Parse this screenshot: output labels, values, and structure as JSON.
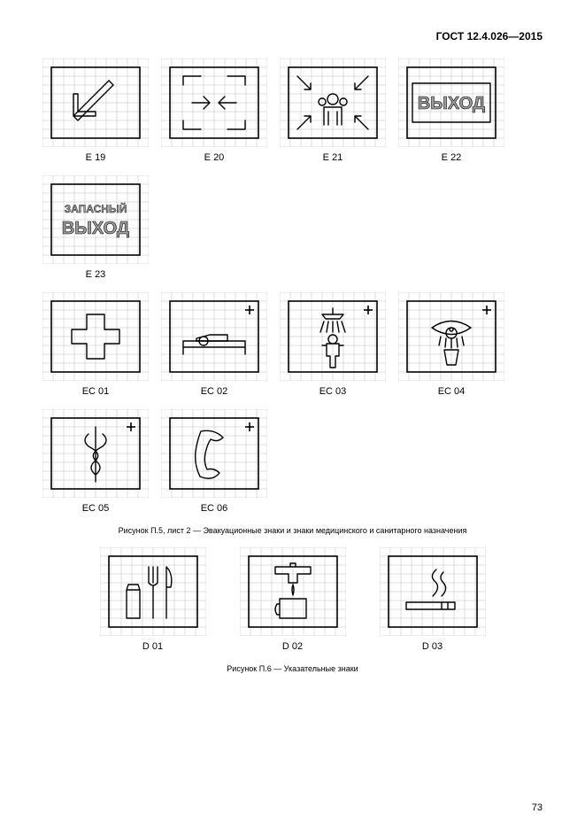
{
  "header": "ГОСТ 12.4.026—2015",
  "page_number": "73",
  "tile": {
    "width": 120,
    "height": 100,
    "grid_divisions": 10,
    "border_inset": 10,
    "colors": {
      "background": "#ffffff",
      "grid_line": "#bfbfbf",
      "border": "#000000",
      "icon_stroke": "#000000",
      "icon_fill": "none",
      "text_fill": "#9c9c9c"
    },
    "stroke_width": 1.4
  },
  "rows": [
    {
      "kind": "normal",
      "cells": [
        "e19",
        "e20",
        "e21",
        "e22"
      ]
    },
    {
      "kind": "normal",
      "cells": [
        "e23"
      ]
    },
    {
      "kind": "normal",
      "cells": [
        "ec01",
        "ec02",
        "ec03",
        "ec04"
      ]
    },
    {
      "kind": "normal",
      "cells": [
        "ec05",
        "ec06"
      ]
    },
    {
      "kind": "caption",
      "text": "Рисунок П.5, лист 2 — Эвакуационные знаки и знаки медицинского и санитарного назначения"
    },
    {
      "kind": "d",
      "cells": [
        "d01",
        "d02",
        "d03"
      ]
    },
    {
      "kind": "caption",
      "text": "Рисунок П.6 — Указательные знаки"
    }
  ],
  "signs": {
    "e19": {
      "label": "E 19",
      "desc": "arrow-diagonal-down-left",
      "type": "svg-path",
      "paths": [
        "M75 25 L35 65 M35 65 L35 40 M35 65 L60 65 M75 25 L80 30 L40 70 L35 65 M35 40 L40 40 L40 60 L60 60 L60 65"
      ]
    },
    "e20": {
      "label": "E 20",
      "desc": "emergency-exit-arrows",
      "type": "svg-path",
      "paths": [
        "M25 20 L45 20 M25 20 L25 30 M25 80 L45 80 M25 80 L25 70",
        "M95 20 L75 20 M95 20 L95 30 M95 80 L75 80 M95 80 L95 70",
        "M35 50 L55 50 M55 50 L48 43 M55 50 L48 57",
        "M85 50 L65 50 M65 50 L72 43 M65 50 L72 57"
      ]
    },
    "e21": {
      "label": "E 21",
      "desc": "assembly-point",
      "type": "svg-path",
      "paths": [
        "M60 40 a6 6 0 1 0 0.01 0 M50 75 L50 55 L70 55 L70 75 M55 75 L55 60 M65 75 L65 60",
        "M48 45 a4 4 0 1 0 0.01 0 M72 45 a4 4 0 1 0 0.01 0",
        "M20 20 L35 35 M35 35 L28 35 M35 35 L35 28",
        "M100 20 L85 35 M85 35 L92 35 M85 35 L85 28",
        "M20 80 L35 65 M35 65 L28 65 M35 65 L35 72",
        "M100 80 L85 65 M85 65 L92 65 M85 65 L85 72"
      ]
    },
    "e22": {
      "label": "E 22",
      "desc": "exit-text-vyhod",
      "type": "text-sign",
      "text": "ВЫХОД",
      "frame": true,
      "font_size": 20
    },
    "e23": {
      "label": "E 23",
      "desc": "emergency-exit-text",
      "type": "text-sign-2line",
      "line1": "ЗАПАСНЫЙ",
      "line2": "ВЫХОД",
      "font_size1": 12,
      "font_size2": 20
    },
    "ec01": {
      "label": "EC 01",
      "desc": "first-aid-cross",
      "type": "svg-path",
      "paths": [
        "M50 25 L70 25 L70 42 L87 42 L87 58 L70 58 L70 75 L50 75 L50 58 L33 58 L33 42 L50 42 Z"
      ]
    },
    "ec02": {
      "label": "EC 02",
      "desc": "stretcher",
      "type": "svg-path",
      "plus": true,
      "paths": [
        "M25 55 L95 55 M25 62 L95 62 M25 55 L25 70 M95 55 L95 70",
        "M48 50 a5 5 0 1 0 0.01 0 M40 55 L75 55 L75 48 L55 48 L40 52 Z"
      ]
    },
    "ec03": {
      "label": "EC 03",
      "desc": "safety-shower",
      "type": "svg-path",
      "plus": true,
      "paths": [
        "M60 18 L60 25 M48 25 L72 25 L68 30 L52 30 Z",
        "M50 33 L46 45 M55 33 L53 45 M60 33 L60 45 M65 33 L67 45 M70 33 L74 45",
        "M60 48 a5 5 0 1 0 0.01 0 M53 58 L67 58 L67 72 L63 72 L63 85 L57 85 L57 72 L53 72 Z M48 60 L53 60 M72 60 L67 60"
      ]
    },
    "ec04": {
      "label": "EC 04",
      "desc": "eye-wash",
      "type": "svg-path",
      "plus": true,
      "paths": [
        "M38 40 Q60 25 82 40 Q60 55 38 40 Z M60 40 a6 6 0 1 0 0.01 0 M60 40 a2 2 0 1 0 0.01 0",
        "M48 50 L46 60 M54 52 L53 62 M60 53 L60 63 M66 52 L67 62 M72 50 L74 60",
        "M52 65 L68 65 L65 82 L55 82 Z"
      ]
    },
    "ec05": {
      "label": "EC 05",
      "desc": "medical-aid-rod",
      "type": "svg-path",
      "plus": true,
      "paths": [
        "M60 20 L60 82",
        "M52 28 Q44 35 52 42 Q68 50 60 58 Q50 66 60 74",
        "M68 28 Q76 35 68 42 Q52 50 60 58 Q70 66 60 74"
      ]
    },
    "ec06": {
      "label": "EC 06",
      "desc": "emergency-phone",
      "type": "svg-path",
      "plus": true,
      "paths": [
        "M45 25 Q60 22 70 32 Q64 38 56 34 Q52 40 50 50 Q48 60 52 68 Q60 66 66 72 Q58 82 44 76 Q36 60 40 42 Q42 32 45 25 Z"
      ]
    },
    "d01": {
      "label": "D 01",
      "desc": "food-cutlery",
      "type": "svg-path",
      "paths": [
        "M30 48 L45 48 L45 80 L30 80 Z M30 48 L32 42 L43 42 L45 48",
        "M55 22 L55 40 M60 22 L60 40 M65 22 L65 40 M55 40 Q60 46 65 40 M60 44 L60 80",
        "M75 22 L75 80 M75 22 Q83 30 80 45 L75 45"
      ]
    },
    "d02": {
      "label": "D 02",
      "desc": "drinking-water-tap",
      "type": "svg-path",
      "paths": [
        "M40 22 L80 22 L80 30 L65 30 L65 40 L55 40 L55 30 L40 30 Z M57 18 L63 18 L63 22 L57 22 Z",
        "M60 42 Q58 48 60 54 Q62 48 60 42",
        "M45 58 L75 58 L75 80 L45 80 Z M42 64 Q38 70 42 76 L45 76 L45 64 Z"
      ]
    },
    "d03": {
      "label": "D 03",
      "desc": "smoking-area",
      "type": "svg-path",
      "paths": [
        "M30 62 L85 62 L85 70 L30 70 Z M70 62 L70 70 M77 62 L77 70",
        "M60 55 Q70 45 62 38 Q56 32 64 25",
        "M70 55 Q78 47 72 40 Q66 34 72 28"
      ]
    }
  }
}
